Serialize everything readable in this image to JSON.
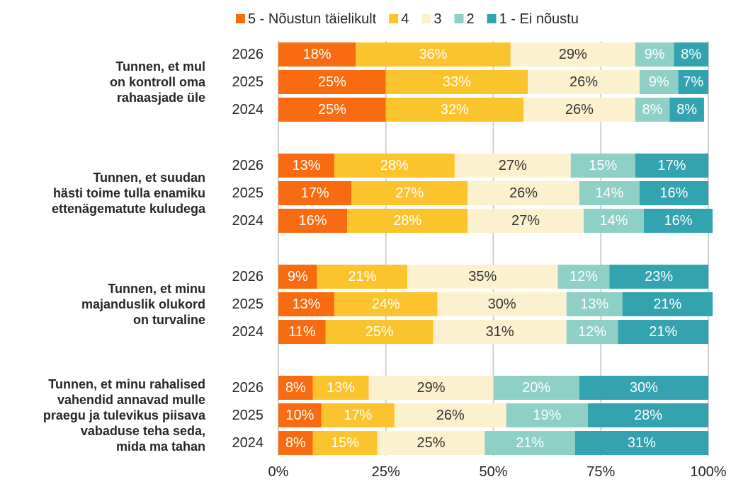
{
  "chart_data": {
    "type": "stacked-hbar",
    "group_labels": [
      "Tunnen, et mul\non kontroll oma\nrahaasjade üle",
      "Tunnen, et suudan\nhästi toime tulla enamiku\nettenägematute kuludega",
      "Tunnen, et  minu\nmajanduslik olukord\non turvaline",
      "Tunnen, et minu rahalised\nvahendid annavad mulle\npraegu ja tulevikus piisava\nvabaduse teha seda,\nmida ma tahan"
    ],
    "categories": [
      "2026",
      "2025",
      "2024",
      "2026",
      "2025",
      "2024",
      "2026",
      "2025",
      "2024",
      "2026",
      "2025",
      "2024"
    ],
    "series": [
      {
        "name": "5 - Nõustun täielikult",
        "color": "#f96b10",
        "label_color": "#ffffff",
        "values": [
          18,
          25,
          25,
          13,
          17,
          16,
          9,
          13,
          11,
          8,
          10,
          8
        ],
        "value_labels": [
          "18%",
          "25%",
          "25%",
          "13%",
          "17%",
          "16%",
          "9%",
          "13%",
          "11%",
          "8%",
          "10%",
          "8%"
        ]
      },
      {
        "name": "4",
        "color": "#fcc42c",
        "label_color": "#ffffff",
        "values": [
          36,
          33,
          32,
          28,
          27,
          28,
          21,
          24,
          25,
          13,
          17,
          15
        ],
        "value_labels": [
          "36%",
          "33%",
          "32%",
          "28%",
          "27%",
          "28%",
          "21%",
          "24%",
          "25%",
          "13%",
          "17%",
          "15%"
        ]
      },
      {
        "name": "3",
        "color": "#fcf1cf",
        "label_color": "#333333",
        "values": [
          29,
          26,
          26,
          27,
          26,
          27,
          35,
          30,
          31,
          29,
          26,
          25
        ],
        "value_labels": [
          "29%",
          "26%",
          "26%",
          "27%",
          "26%",
          "27%",
          "35%",
          "30%",
          "31%",
          "29%",
          "26%",
          "25%"
        ]
      },
      {
        "name": "2",
        "color": "#8ecfc6",
        "label_color": "#ffffff",
        "values": [
          9,
          9,
          8,
          15,
          14,
          14,
          12,
          13,
          12,
          20,
          19,
          21
        ],
        "value_labels": [
          "9%",
          "9%",
          "8%",
          "15%",
          "14%",
          "14%",
          "12%",
          "13%",
          "12%",
          "20%",
          "19%",
          "21%"
        ]
      },
      {
        "name": "1 - Ei nõustu",
        "color": "#33a3b0",
        "label_color": "#ffffff",
        "values": [
          8,
          7,
          8,
          17,
          16,
          16,
          23,
          21,
          21,
          30,
          28,
          31
        ],
        "value_labels": [
          "8%",
          "7%",
          "8%",
          "17%",
          "16%",
          "16%",
          "23%",
          "21%",
          "21%",
          "30%",
          "28%",
          "31%"
        ]
      }
    ],
    "xlim": [
      0,
      100
    ],
    "xticks": [
      {
        "value": 0,
        "label": "0%"
      },
      {
        "value": 25,
        "label": "25%"
      },
      {
        "value": 50,
        "label": "50%"
      },
      {
        "value": 75,
        "label": "75%"
      },
      {
        "value": 100,
        "label": "100%"
      }
    ],
    "grid": true,
    "legend": "top"
  }
}
